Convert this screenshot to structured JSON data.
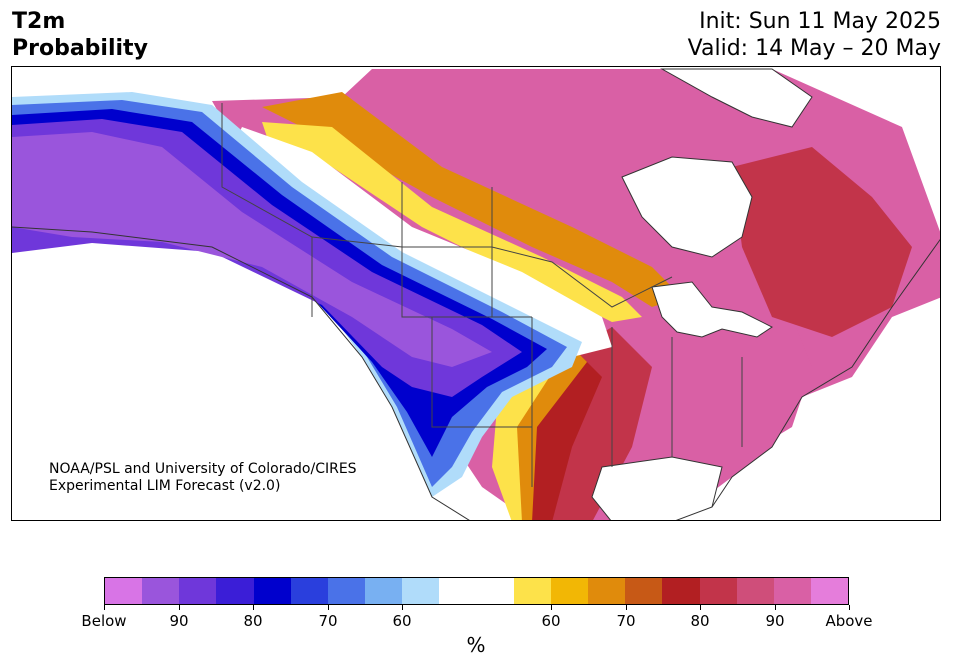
{
  "title": {
    "line1": "T2m",
    "line2": "Probability"
  },
  "dates": {
    "init": "Init: Sun 11 May 2025",
    "valid": "Valid: 14 May – 20 May"
  },
  "credit": {
    "line1": "NOAA/PSL and University of Colorado/CIRES",
    "line2": "Experimental LIM Forecast (v2.0)"
  },
  "colorbar": {
    "colors": [
      "#d874e6",
      "#9a55dc",
      "#6f37da",
      "#3b1ed7",
      "#0000cd",
      "#2a3fdd",
      "#4a72e8",
      "#78b0f2",
      "#b0dcfa",
      "#ffffff",
      "#ffffff",
      "#fde24a",
      "#f2b705",
      "#e08b0c",
      "#c75916",
      "#b21f22",
      "#c2344a",
      "#cf4e7a",
      "#d960a5",
      "#e57ddb"
    ],
    "tick_labels": [
      "Below",
      "90",
      "80",
      "70",
      "60",
      "60",
      "70",
      "80",
      "90",
      "Above"
    ],
    "unit": "%"
  },
  "map": {
    "region": "North America",
    "categories_above": [
      "#fde24a",
      "#f2b705",
      "#e08b0c",
      "#c75916",
      "#b21f22",
      "#c2344a",
      "#cf4e7a",
      "#d960a5",
      "#e57ddb"
    ],
    "categories_below": [
      "#b0dcfa",
      "#78b0f2",
      "#4a72e8",
      "#2a3fdd",
      "#0000cd",
      "#3b1ed7",
      "#6f37da",
      "#9a55dc",
      "#d874e6"
    ]
  }
}
